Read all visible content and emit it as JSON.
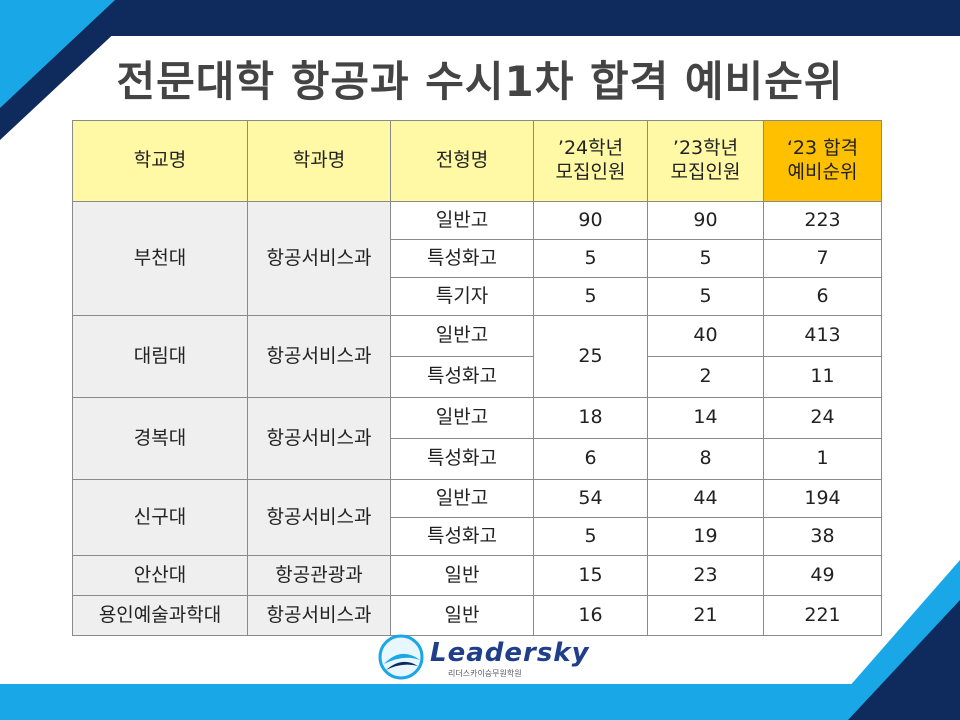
{
  "title": "전문대학 항공과 수시1차 합격 예비순위",
  "headers": {
    "school": "학교명",
    "department": "학과명",
    "track": "전형명",
    "quota24": [
      "’24학년",
      "모집인원"
    ],
    "quota23": [
      "’23학년",
      "모집인원"
    ],
    "rank23": [
      "‘23 합격",
      "예비순위"
    ]
  },
  "schools": [
    {
      "name": "부천대",
      "department": "항공서비스과",
      "rows": [
        {
          "track": "일반고",
          "q24": "90",
          "q23": "90",
          "rank": "223"
        },
        {
          "track": "특성화고",
          "q24": "5",
          "q23": "5",
          "rank": "7"
        },
        {
          "track": "특기자",
          "q24": "5",
          "q23": "5",
          "rank": "6"
        }
      ]
    },
    {
      "name": "대림대",
      "department": "항공서비스과",
      "q24_merged": "25",
      "rows": [
        {
          "track": "일반고",
          "q23": "40",
          "rank": "413"
        },
        {
          "track": "특성화고",
          "q23": "2",
          "rank": "11"
        }
      ]
    },
    {
      "name": "경복대",
      "department": "항공서비스과",
      "rows": [
        {
          "track": "일반고",
          "q24": "18",
          "q23": "14",
          "rank": "24"
        },
        {
          "track": "특성화고",
          "q24": "6",
          "q23": "8",
          "rank": "1"
        }
      ]
    },
    {
      "name": "신구대",
      "department": "항공서비스과",
      "rows": [
        {
          "track": "일반고",
          "q24": "54",
          "q23": "44",
          "rank": "194"
        },
        {
          "track": "특성화고",
          "q24": "5",
          "q23": "19",
          "rank": "38"
        }
      ]
    },
    {
      "name": "안산대",
      "department": "항공관광과",
      "rows": [
        {
          "track": "일반",
          "q24": "15",
          "q23": "23",
          "rank": "49"
        }
      ]
    },
    {
      "name": "용인예술과학대",
      "department": "항공서비스과",
      "rows": [
        {
          "track": "일반",
          "q24": "16",
          "q23": "21",
          "rank": "221"
        }
      ]
    }
  ],
  "logo": {
    "name": "Leadersky",
    "subtitle": "리더스카이승무원학원"
  },
  "colors": {
    "navy": "#0f2a5c",
    "sky": "#1aa7e8",
    "header_yellow": "#fff9a6",
    "rank_orange": "#ffc000",
    "rank_red": "#e8110f"
  }
}
